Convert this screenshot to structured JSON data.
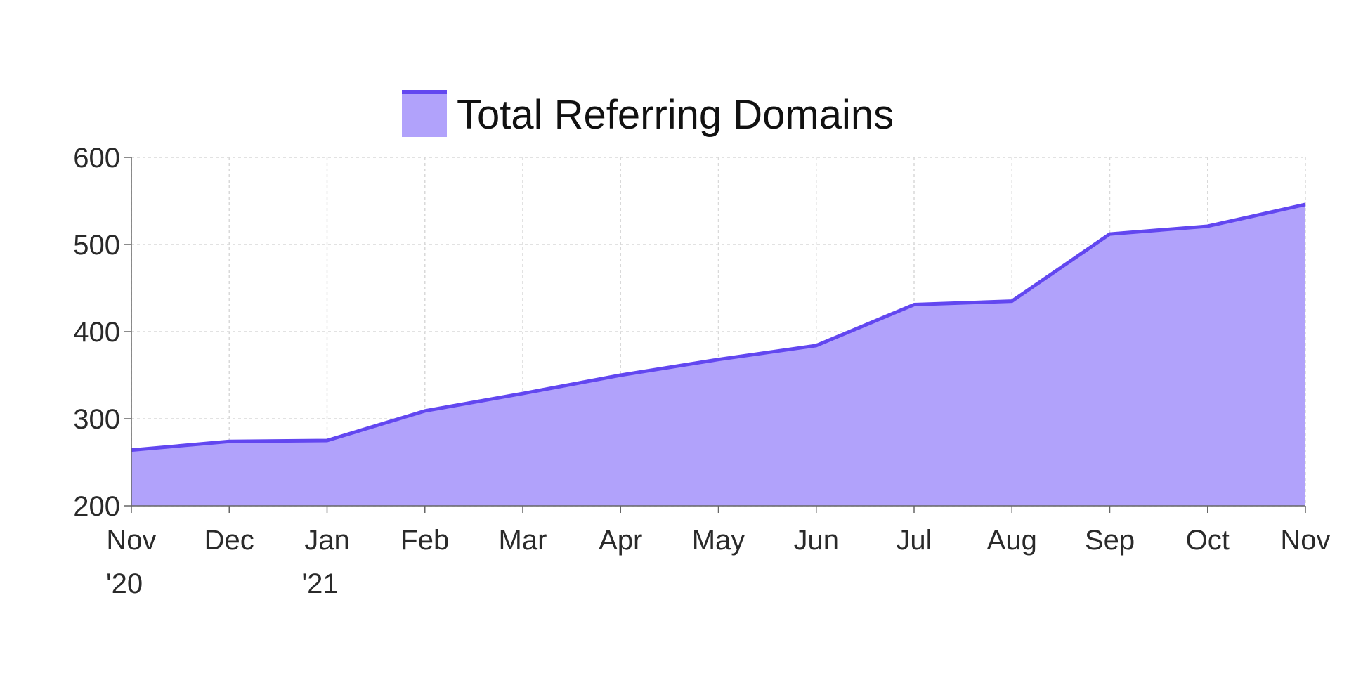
{
  "chart_data": {
    "type": "area",
    "x": [
      "Nov '20",
      "Dec",
      "Jan '21",
      "Feb",
      "Mar",
      "Apr",
      "May",
      "Jun",
      "Jul",
      "Aug",
      "Sep",
      "Oct",
      "Nov"
    ],
    "x_tick_labels": [
      [
        "Nov",
        "'20"
      ],
      [
        "Dec"
      ],
      [
        "Jan",
        "'21"
      ],
      [
        "Feb"
      ],
      [
        "Mar"
      ],
      [
        "Apr"
      ],
      [
        "May"
      ],
      [
        "Jun"
      ],
      [
        "Jul"
      ],
      [
        "Aug"
      ],
      [
        "Sep"
      ],
      [
        "Oct"
      ],
      [
        "Nov"
      ]
    ],
    "series": [
      {
        "name": "Total Referring Domains",
        "values": [
          264,
          274,
          275,
          309,
          329,
          350,
          368,
          384,
          431,
          435,
          512,
          521,
          546
        ]
      }
    ],
    "ylim": [
      200,
      600
    ],
    "yticks": [
      200,
      300,
      400,
      500,
      600
    ],
    "grid": true,
    "legend_position": "top-center",
    "colors": {
      "line": "#6247f0",
      "fill": "#b1a2fb",
      "axis": "#666666",
      "grid": "#d9d9d9"
    }
  }
}
